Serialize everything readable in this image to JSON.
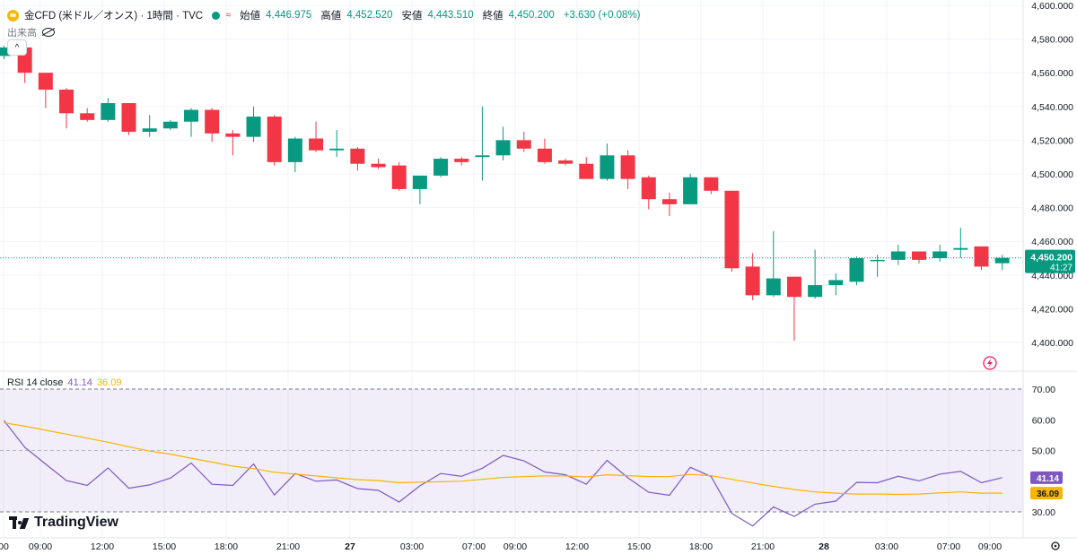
{
  "header": {
    "title": "金CFD (米ドル／オンス) · 1時間 · TVC",
    "open_label": "始値",
    "open": "4,446.975",
    "high_label": "高値",
    "high": "4,452.520",
    "low_label": "安値",
    "low": "4,443.510",
    "close_label": "終値",
    "close": "4,450.200",
    "change": "+3.630 (+0.08%)",
    "icons": [
      "gold-coin-icon",
      "market-open-dot-icon",
      "wave-icon"
    ]
  },
  "volume_label": "出来高",
  "rsi": {
    "label": "RSI 14 close",
    "value": "41.14",
    "ma_value": "36.09",
    "line_color": "#7e57c2",
    "ma_color": "#f7b500"
  },
  "price_tag": {
    "value": "4,450.200",
    "countdown": "41:27"
  },
  "brand": "TradingView",
  "colors": {
    "up": "#089981",
    "down": "#f23645"
  },
  "chart_data": [
    {
      "type": "candlestick",
      "title": "金CFD (米ドル／オンス) · 1時間 · TVC",
      "y_ticks": [
        "4,600.000",
        "4,580.000",
        "4,560.000",
        "4,540.000",
        "4,520.000",
        "4,500.000",
        "4,480.000",
        "4,460.000",
        "4,440.000",
        "4,420.000",
        "4,400.000"
      ],
      "ylim": [
        4390,
        4600
      ],
      "x_ticks": [
        "00",
        "09:00",
        "12:00",
        "15:00",
        "18:00",
        "21:00",
        "27",
        "03:00",
        "07:00",
        "09:00",
        "12:00",
        "15:00",
        "18:00",
        "21:00",
        "28",
        "03:00",
        "07:00",
        "09:00"
      ],
      "candles": [
        {
          "o": 4570,
          "h": 4576,
          "l": 4568,
          "c": 4575
        },
        {
          "o": 4575,
          "h": 4577,
          "l": 4554,
          "c": 4560
        },
        {
          "o": 4560,
          "h": 4560,
          "l": 4539,
          "c": 4550
        },
        {
          "o": 4550,
          "h": 4551,
          "l": 4527,
          "c": 4536
        },
        {
          "o": 4536,
          "h": 4539,
          "l": 4531,
          "c": 4532
        },
        {
          "o": 4532,
          "h": 4545,
          "l": 4531,
          "c": 4542
        },
        {
          "o": 4542,
          "h": 4542,
          "l": 4523,
          "c": 4525
        },
        {
          "o": 4525,
          "h": 4535,
          "l": 4522,
          "c": 4527
        },
        {
          "o": 4527,
          "h": 4532,
          "l": 4526,
          "c": 4531
        },
        {
          "o": 4531,
          "h": 4539,
          "l": 4522,
          "c": 4538
        },
        {
          "o": 4538,
          "h": 4539,
          "l": 4519,
          "c": 4524
        },
        {
          "o": 4524,
          "h": 4526,
          "l": 4511,
          "c": 4522
        },
        {
          "o": 4522,
          "h": 4540,
          "l": 4519,
          "c": 4534
        },
        {
          "o": 4534,
          "h": 4535,
          "l": 4505,
          "c": 4507
        },
        {
          "o": 4507,
          "h": 4522,
          "l": 4501,
          "c": 4521
        },
        {
          "o": 4521,
          "h": 4531,
          "l": 4513,
          "c": 4514
        },
        {
          "o": 4514,
          "h": 4526,
          "l": 4510,
          "c": 4515
        },
        {
          "o": 4515,
          "h": 4516,
          "l": 4502,
          "c": 4506
        },
        {
          "o": 4506,
          "h": 4509,
          "l": 4503,
          "c": 4504
        },
        {
          "o": 4505,
          "h": 4507,
          "l": 4490,
          "c": 4491
        },
        {
          "o": 4491,
          "h": 4499,
          "l": 4482,
          "c": 4499
        },
        {
          "o": 4499,
          "h": 4510,
          "l": 4498,
          "c": 4509
        },
        {
          "o": 4509,
          "h": 4510,
          "l": 4505,
          "c": 4507
        },
        {
          "o": 4510,
          "h": 4540,
          "l": 4496,
          "c": 4511
        },
        {
          "o": 4511,
          "h": 4528,
          "l": 4508,
          "c": 4520
        },
        {
          "o": 4520,
          "h": 4525,
          "l": 4513,
          "c": 4515
        },
        {
          "o": 4515,
          "h": 4521,
          "l": 4506,
          "c": 4507
        },
        {
          "o": 4508,
          "h": 4509,
          "l": 4505,
          "c": 4506
        },
        {
          "o": 4506,
          "h": 4510,
          "l": 4497,
          "c": 4497
        },
        {
          "o": 4497,
          "h": 4518,
          "l": 4496,
          "c": 4511
        },
        {
          "o": 4511,
          "h": 4514,
          "l": 4491,
          "c": 4497
        },
        {
          "o": 4498,
          "h": 4499,
          "l": 4479,
          "c": 4485
        },
        {
          "o": 4485,
          "h": 4489,
          "l": 4475,
          "c": 4482
        },
        {
          "o": 4482,
          "h": 4500,
          "l": 4482,
          "c": 4498
        },
        {
          "o": 4498,
          "h": 4498,
          "l": 4488,
          "c": 4490
        },
        {
          "o": 4490,
          "h": 4490,
          "l": 4442,
          "c": 4444
        },
        {
          "o": 4445,
          "h": 4453,
          "l": 4425,
          "c": 4428
        },
        {
          "o": 4428,
          "h": 4466,
          "l": 4427,
          "c": 4438
        },
        {
          "o": 4439,
          "h": 4439,
          "l": 4401,
          "c": 4427
        },
        {
          "o": 4427,
          "h": 4455,
          "l": 4426,
          "c": 4434
        },
        {
          "o": 4434,
          "h": 4441,
          "l": 4428,
          "c": 4437
        },
        {
          "o": 4436,
          "h": 4451,
          "l": 4434,
          "c": 4450
        },
        {
          "o": 4449,
          "h": 4452,
          "l": 4439,
          "c": 4449
        },
        {
          "o": 4449,
          "h": 4458,
          "l": 4446,
          "c": 4454
        },
        {
          "o": 4454,
          "h": 4454,
          "l": 4447,
          "c": 4449
        },
        {
          "o": 4450,
          "h": 4458,
          "l": 4448,
          "c": 4454
        },
        {
          "o": 4455,
          "h": 4468,
          "l": 4450,
          "c": 4456
        },
        {
          "o": 4457,
          "h": 4457,
          "l": 4443,
          "c": 4445
        },
        {
          "o": 4447,
          "h": 4452,
          "l": 4443,
          "c": 4450.2
        }
      ]
    },
    {
      "type": "line",
      "title": "RSI 14 close",
      "y_ticks": [
        "70.00",
        "60.00",
        "50.00",
        "30.00"
      ],
      "ylim": [
        27,
        72
      ],
      "series": [
        {
          "name": "RSI 14 close",
          "color": "#7e57c2",
          "values": [
            59.7,
            51.0,
            45.6,
            40.2,
            38.6,
            44.3,
            37.7,
            38.8,
            41.0,
            45.9,
            39.0,
            38.6,
            45.6,
            35.5,
            42.5,
            40.0,
            40.4,
            37.6,
            37.0,
            33.2,
            38.5,
            42.5,
            41.6,
            44.2,
            48.4,
            46.6,
            43.0,
            42.1,
            39.0,
            46.8,
            41.1,
            36.4,
            35.4,
            44.5,
            41.5,
            29.5,
            25.4,
            31.6,
            28.5,
            32.5,
            33.5,
            39.6,
            39.5,
            41.6,
            40.1,
            42.3,
            43.2,
            39.5,
            41.14
          ]
        },
        {
          "value_label": "36.09",
          "color": "#f7b500",
          "values": [
            59.0,
            57.9,
            56.6,
            55.3,
            54.0,
            52.7,
            51.2,
            49.8,
            48.8,
            47.5,
            46.2,
            44.9,
            44.1,
            42.9,
            42.3,
            41.7,
            41.1,
            40.5,
            40.2,
            39.5,
            39.7,
            39.8,
            40.0,
            40.6,
            41.2,
            41.5,
            41.7,
            41.7,
            41.4,
            42.1,
            41.8,
            41.5,
            41.5,
            42.2,
            41.8,
            40.6,
            39.4,
            38.3,
            37.3,
            36.5,
            36.1,
            35.8,
            35.8,
            35.7,
            35.8,
            36.2,
            36.5,
            36.1,
            36.09
          ]
        }
      ]
    }
  ]
}
